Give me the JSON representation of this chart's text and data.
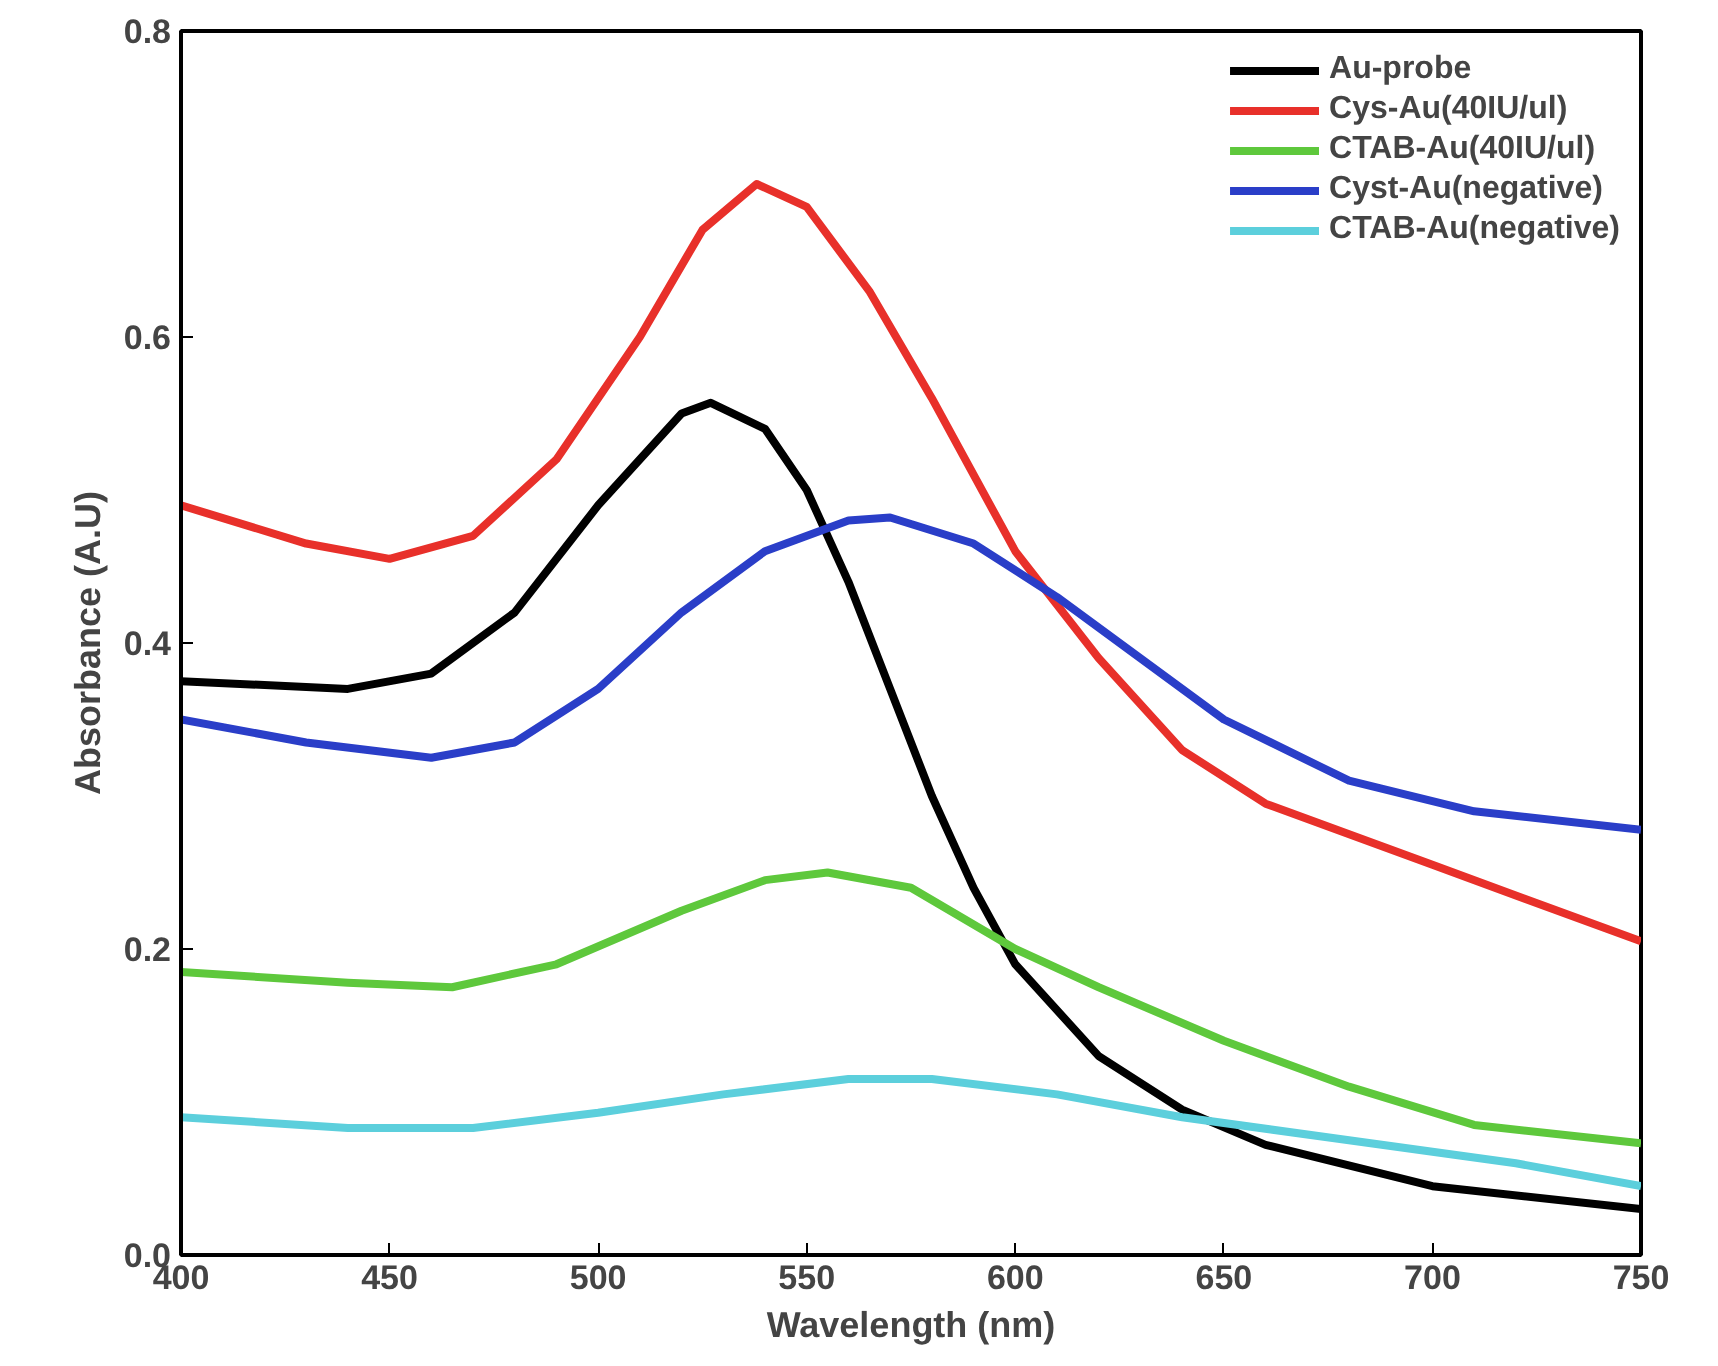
{
  "chart_data": {
    "type": "line",
    "xlabel": "Wavelength (nm)",
    "ylabel": "Absorbance (A.U)",
    "xlim": [
      400,
      750
    ],
    "ylim": [
      0,
      0.8
    ],
    "xticks": [
      400,
      450,
      500,
      550,
      600,
      650,
      700,
      750
    ],
    "yticks": [
      {
        "value": 0,
        "label": "0.0"
      },
      0.2,
      0.4,
      0.6,
      0.8
    ],
    "grid": false,
    "legend": "top right",
    "marker": "none",
    "line_style": "solid",
    "series": [
      {
        "name": "Au-probe",
        "color": "#000000",
        "x": [
          400,
          440,
          460,
          480,
          500,
          520,
          527,
          540,
          550,
          560,
          570,
          580,
          590,
          600,
          620,
          640,
          660,
          700,
          750
        ],
        "values": [
          0.375,
          0.37,
          0.38,
          0.42,
          0.49,
          0.55,
          0.557,
          0.54,
          0.5,
          0.44,
          0.37,
          0.3,
          0.24,
          0.19,
          0.13,
          0.095,
          0.072,
          0.045,
          0.03
        ]
      },
      {
        "name": "Cys-Au(40IU/ul)",
        "color": "#e8302a",
        "x": [
          400,
          430,
          450,
          470,
          490,
          510,
          525,
          538,
          550,
          565,
          580,
          600,
          620,
          640,
          660,
          700,
          750
        ],
        "values": [
          0.49,
          0.465,
          0.455,
          0.47,
          0.52,
          0.6,
          0.67,
          0.7,
          0.685,
          0.63,
          0.56,
          0.46,
          0.39,
          0.33,
          0.295,
          0.255,
          0.205
        ]
      },
      {
        "name": "CTAB-Au(40IU/ul)",
        "color": "#5ec83c",
        "x": [
          400,
          440,
          465,
          490,
          520,
          540,
          555,
          575,
          600,
          620,
          650,
          680,
          710,
          750
        ],
        "values": [
          0.185,
          0.178,
          0.175,
          0.19,
          0.225,
          0.245,
          0.25,
          0.24,
          0.2,
          0.175,
          0.14,
          0.11,
          0.085,
          0.073
        ]
      },
      {
        "name": "Cyst-Au(negative)",
        "color": "#2a3ec8",
        "x": [
          400,
          430,
          460,
          480,
          500,
          520,
          540,
          560,
          570,
          590,
          610,
          630,
          650,
          680,
          710,
          750
        ],
        "values": [
          0.35,
          0.335,
          0.325,
          0.335,
          0.37,
          0.42,
          0.46,
          0.48,
          0.482,
          0.465,
          0.43,
          0.39,
          0.35,
          0.31,
          0.29,
          0.278
        ]
      },
      {
        "name": "CTAB-Au(negative)",
        "color": "#5ccfdc",
        "x": [
          400,
          440,
          470,
          500,
          530,
          560,
          580,
          610,
          640,
          680,
          720,
          750
        ],
        "values": [
          0.09,
          0.083,
          0.083,
          0.093,
          0.105,
          0.115,
          0.115,
          0.105,
          0.09,
          0.075,
          0.06,
          0.045
        ]
      }
    ]
  }
}
